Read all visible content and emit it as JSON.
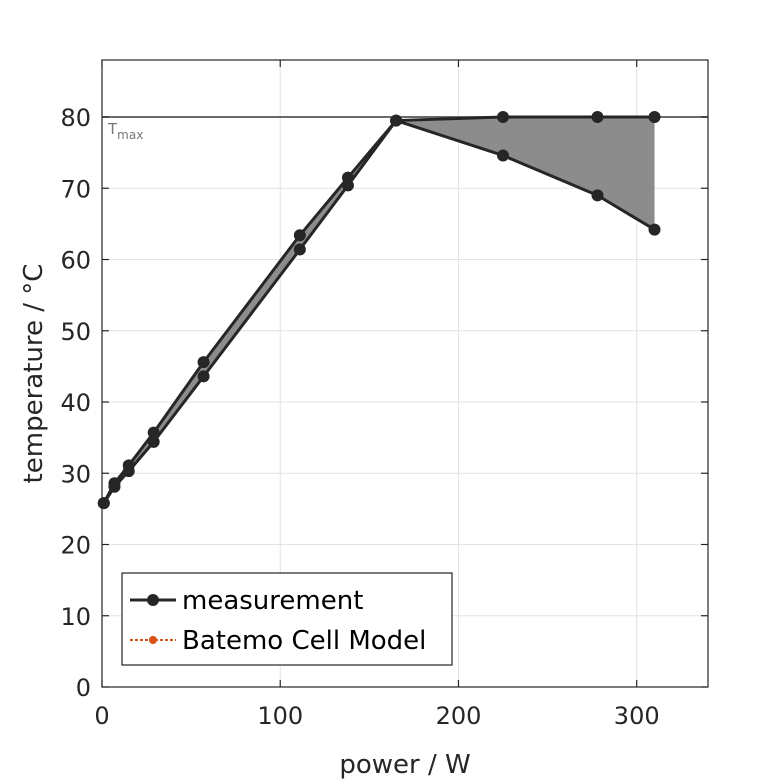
{
  "chart_data": {
    "type": "line",
    "xlabel": "power / W",
    "ylabel": "temperature / °C",
    "xlim": [
      0,
      340
    ],
    "ylim": [
      0,
      88
    ],
    "xticks": [
      0,
      100,
      200,
      300
    ],
    "yticks": [
      0,
      10,
      20,
      30,
      40,
      50,
      60,
      70,
      80
    ],
    "grid": true,
    "legend_placement": "bottom-left",
    "threshold": {
      "value": 80,
      "label": "T",
      "label_sub": "max",
      "color": "#555555"
    },
    "band_color": "#8c8c8c",
    "series": [
      {
        "name": "measurement",
        "color": "#262626",
        "x": [
          1,
          7,
          15,
          29,
          57,
          111,
          138,
          165,
          225,
          278,
          310
        ],
        "y": [
          25.8,
          28.6,
          31.1,
          35.7,
          45.6,
          63.4,
          71.5,
          79.5,
          80.0,
          80.0,
          80.0
        ]
      },
      {
        "name": "measurement",
        "color": "#262626",
        "x": [
          1,
          7,
          15,
          29,
          57,
          111,
          138,
          165,
          225,
          278,
          310
        ],
        "y": [
          25.8,
          28.1,
          30.3,
          34.4,
          43.6,
          61.4,
          70.4,
          79.5,
          74.6,
          69.0,
          64.2
        ]
      }
    ],
    "legend": [
      {
        "label": "measurement",
        "color": "#262626",
        "style": "solid-marker"
      },
      {
        "label": "Batemo Cell Model",
        "color": "#d95319",
        "style": "dotted-marker"
      }
    ]
  }
}
